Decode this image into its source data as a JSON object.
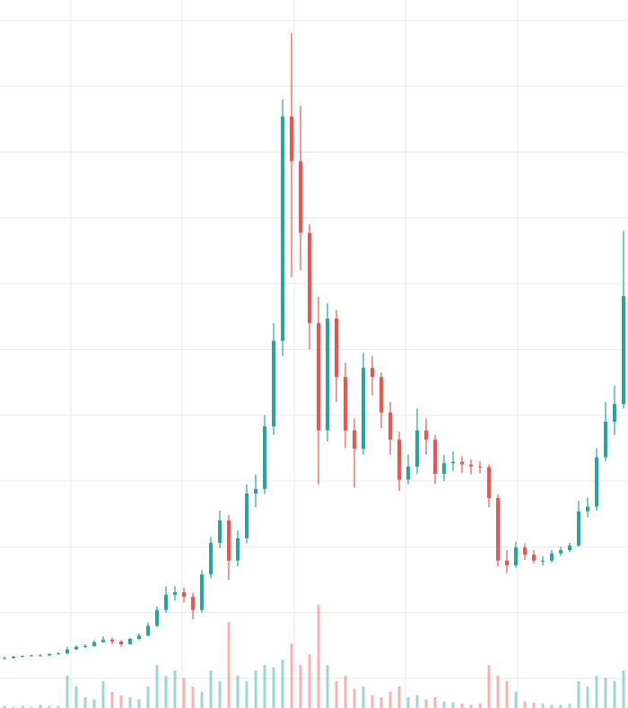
{
  "chart_data": {
    "type": "candlestick",
    "x": [
      0,
      1,
      2,
      3,
      4,
      5,
      6,
      7,
      8,
      9,
      10,
      11,
      12,
      13,
      14,
      15,
      16,
      17,
      18,
      19,
      20,
      21,
      22,
      23,
      24,
      25,
      26,
      27,
      28,
      29,
      30,
      31,
      32,
      33,
      34,
      35,
      36,
      37,
      38,
      39,
      40,
      41,
      42,
      43,
      44,
      45,
      46,
      47,
      48,
      49,
      50,
      51,
      52,
      53,
      54,
      55,
      56,
      57,
      58,
      59,
      60,
      61,
      62,
      63,
      64,
      65,
      66,
      67,
      68,
      69
    ],
    "open": [
      0.3,
      0.31,
      0.33,
      0.34,
      0.35,
      0.35,
      0.37,
      0.38,
      0.44,
      0.48,
      0.49,
      0.55,
      0.59,
      0.56,
      0.52,
      0.6,
      0.65,
      0.8,
      1.04,
      1.27,
      1.31,
      1.24,
      1.04,
      1.58,
      2.06,
      2.4,
      1.79,
      2.13,
      2.81,
      2.88,
      3.83,
      5.13,
      8.54,
      7.86,
      6.77,
      5.4,
      3.77,
      5.47,
      4.58,
      3.77,
      3.49,
      4.72,
      4.58,
      4.04,
      3.63,
      3.02,
      3.22,
      3.77,
      3.63,
      3.11,
      3.27,
      3.29,
      3.25,
      3.22,
      3.21,
      2.74,
      1.79,
      1.72,
      1.99,
      1.88,
      1.79,
      1.79,
      1.9,
      1.95,
      2.02,
      2.54,
      2.61,
      3.36,
      3.9,
      4.17
    ],
    "high": [
      0.33,
      0.34,
      0.35,
      0.36,
      0.37,
      0.38,
      0.4,
      0.48,
      0.5,
      0.52,
      0.58,
      0.64,
      0.62,
      0.58,
      0.62,
      0.68,
      0.85,
      1.1,
      1.4,
      1.4,
      1.38,
      1.3,
      1.65,
      2.15,
      2.55,
      2.48,
      2.25,
      2.95,
      3.1,
      4.0,
      5.4,
      8.8,
      9.81,
      8.7,
      6.9,
      5.8,
      5.7,
      5.6,
      4.8,
      3.95,
      4.95,
      4.9,
      4.65,
      4.2,
      3.75,
      3.4,
      4.1,
      3.95,
      3.7,
      3.4,
      3.45,
      3.38,
      3.33,
      3.3,
      3.25,
      2.8,
      1.95,
      2.08,
      2.05,
      1.95,
      1.86,
      1.95,
      2.0,
      2.06,
      2.7,
      2.75,
      3.5,
      4.2,
      4.45,
      6.8
    ],
    "low": [
      0.29,
      0.3,
      0.32,
      0.33,
      0.34,
      0.34,
      0.36,
      0.36,
      0.43,
      0.46,
      0.48,
      0.54,
      0.52,
      0.48,
      0.51,
      0.58,
      0.64,
      0.78,
      1.0,
      1.18,
      1.15,
      0.9,
      1.0,
      1.52,
      1.98,
      1.5,
      1.7,
      2.05,
      2.6,
      2.8,
      3.7,
      4.9,
      6.1,
      6.2,
      5.0,
      2.95,
      3.6,
      4.2,
      3.5,
      2.9,
      3.4,
      4.3,
      3.8,
      3.4,
      2.85,
      2.95,
      3.1,
      3.4,
      2.95,
      3.0,
      3.15,
      3.12,
      3.1,
      3.12,
      2.6,
      1.7,
      1.6,
      1.68,
      1.8,
      1.75,
      1.72,
      1.76,
      1.86,
      1.92,
      2.0,
      2.45,
      2.55,
      3.3,
      3.7,
      4.1
    ],
    "close": [
      0.31,
      0.33,
      0.34,
      0.35,
      0.35,
      0.37,
      0.38,
      0.44,
      0.48,
      0.49,
      0.55,
      0.59,
      0.56,
      0.52,
      0.6,
      0.65,
      0.8,
      1.04,
      1.27,
      1.31,
      1.24,
      1.04,
      1.58,
      2.06,
      2.4,
      1.79,
      2.13,
      2.81,
      2.88,
      3.83,
      5.13,
      8.54,
      7.86,
      6.77,
      5.4,
      3.77,
      5.47,
      4.58,
      3.77,
      3.49,
      4.72,
      4.58,
      4.04,
      3.63,
      3.02,
      3.22,
      3.77,
      3.63,
      3.11,
      3.27,
      3.29,
      3.25,
      3.22,
      3.21,
      2.74,
      1.79,
      1.72,
      1.99,
      1.88,
      1.79,
      1.79,
      1.9,
      1.95,
      2.02,
      2.54,
      2.61,
      3.36,
      3.9,
      4.17,
      5.81
    ],
    "volume": [
      2,
      1,
      2,
      1,
      3,
      2,
      2,
      30,
      20,
      10,
      8,
      25,
      15,
      12,
      10,
      8,
      20,
      40,
      30,
      35,
      28,
      20,
      15,
      35,
      25,
      80,
      30,
      25,
      35,
      40,
      38,
      45,
      60,
      40,
      50,
      96,
      40,
      25,
      30,
      18,
      20,
      12,
      10,
      15,
      20,
      10,
      12,
      8,
      10,
      6,
      5,
      4,
      3,
      4,
      40,
      30,
      25,
      15,
      6,
      5,
      4,
      3,
      3,
      4,
      25,
      20,
      30,
      28,
      25,
      35
    ],
    "up_color": "#26a69a",
    "down_color": "#ef5350",
    "xlim": [
      -0.5,
      69.5
    ],
    "xticks": [
      7.4,
      19.8,
      32.3,
      44.7,
      57.2
    ],
    "ylim": [
      -0.45,
      10.31
    ],
    "yticks": [
      0,
      1,
      2,
      3,
      4,
      5,
      6,
      7,
      8,
      9,
      10
    ],
    "volume_ylim": [
      0,
      660
    ],
    "grid": true
  }
}
